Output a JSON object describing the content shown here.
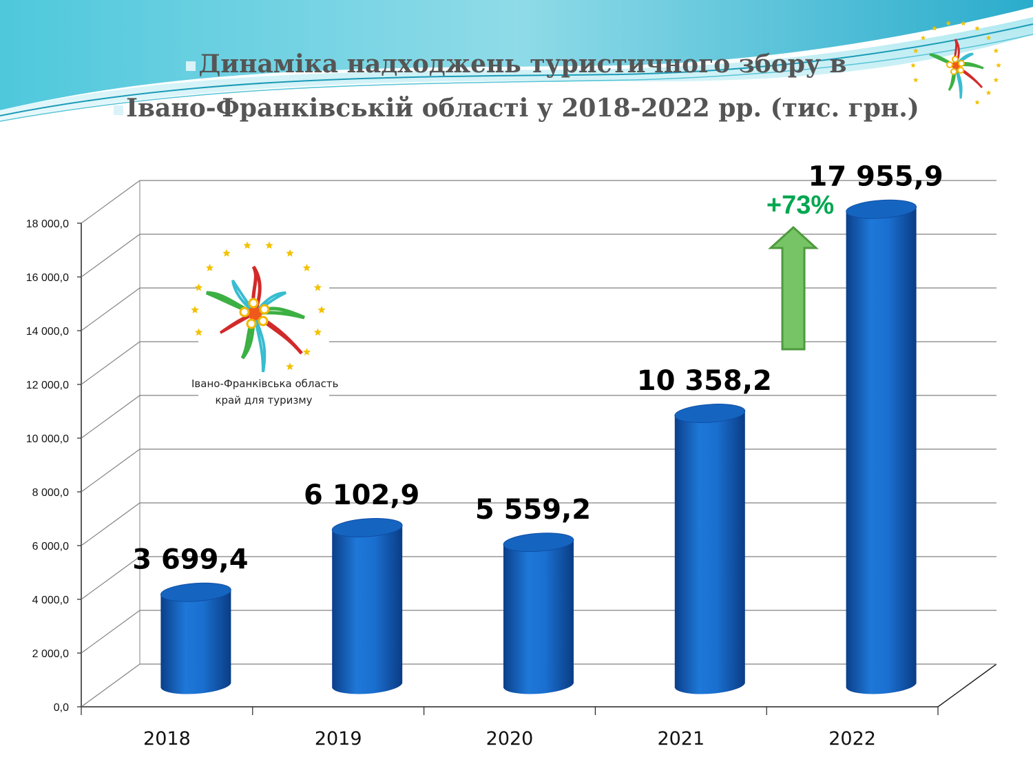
{
  "slide": {
    "title_line1": "Динаміка надходжень туристичного збору в",
    "title_line2": "Івано-Франківській області у 2018-2022 рр. (тис. грн.)"
  },
  "logo": {
    "caption_line1": "Івано-Франківська область",
    "caption_line2": "край для туризму"
  },
  "growth_badge": {
    "label": "+73%",
    "color": "#00a650",
    "arrow_color": "#77c466"
  },
  "colors": {
    "bar": "#1565c0",
    "gridline": "#808080",
    "accent_teal": "#38bcd0"
  },
  "chart_data": {
    "type": "bar",
    "title": "Динаміка надходжень туристичного збору в Івано-Франківській області у 2018-2022 рр. (тис. грн.)",
    "xlabel": "",
    "ylabel": "",
    "categories": [
      "2018",
      "2019",
      "2020",
      "2021",
      "2022"
    ],
    "values": [
      3699.4,
      6102.9,
      5559.2,
      10358.2,
      17955.9
    ],
    "value_labels": [
      "3 699,4",
      "6 102,9",
      "5 559,2",
      "10 358,2",
      "17 955,9"
    ],
    "ylim": [
      0,
      18000
    ],
    "y_ticks": [
      "0,0",
      "2 000,0",
      "4 000,0",
      "6 000,0",
      "8 000,0",
      "10 000,0",
      "12 000,0",
      "14 000,0",
      "16 000,0",
      "18 000,0"
    ],
    "grid": true,
    "legend": "none"
  }
}
